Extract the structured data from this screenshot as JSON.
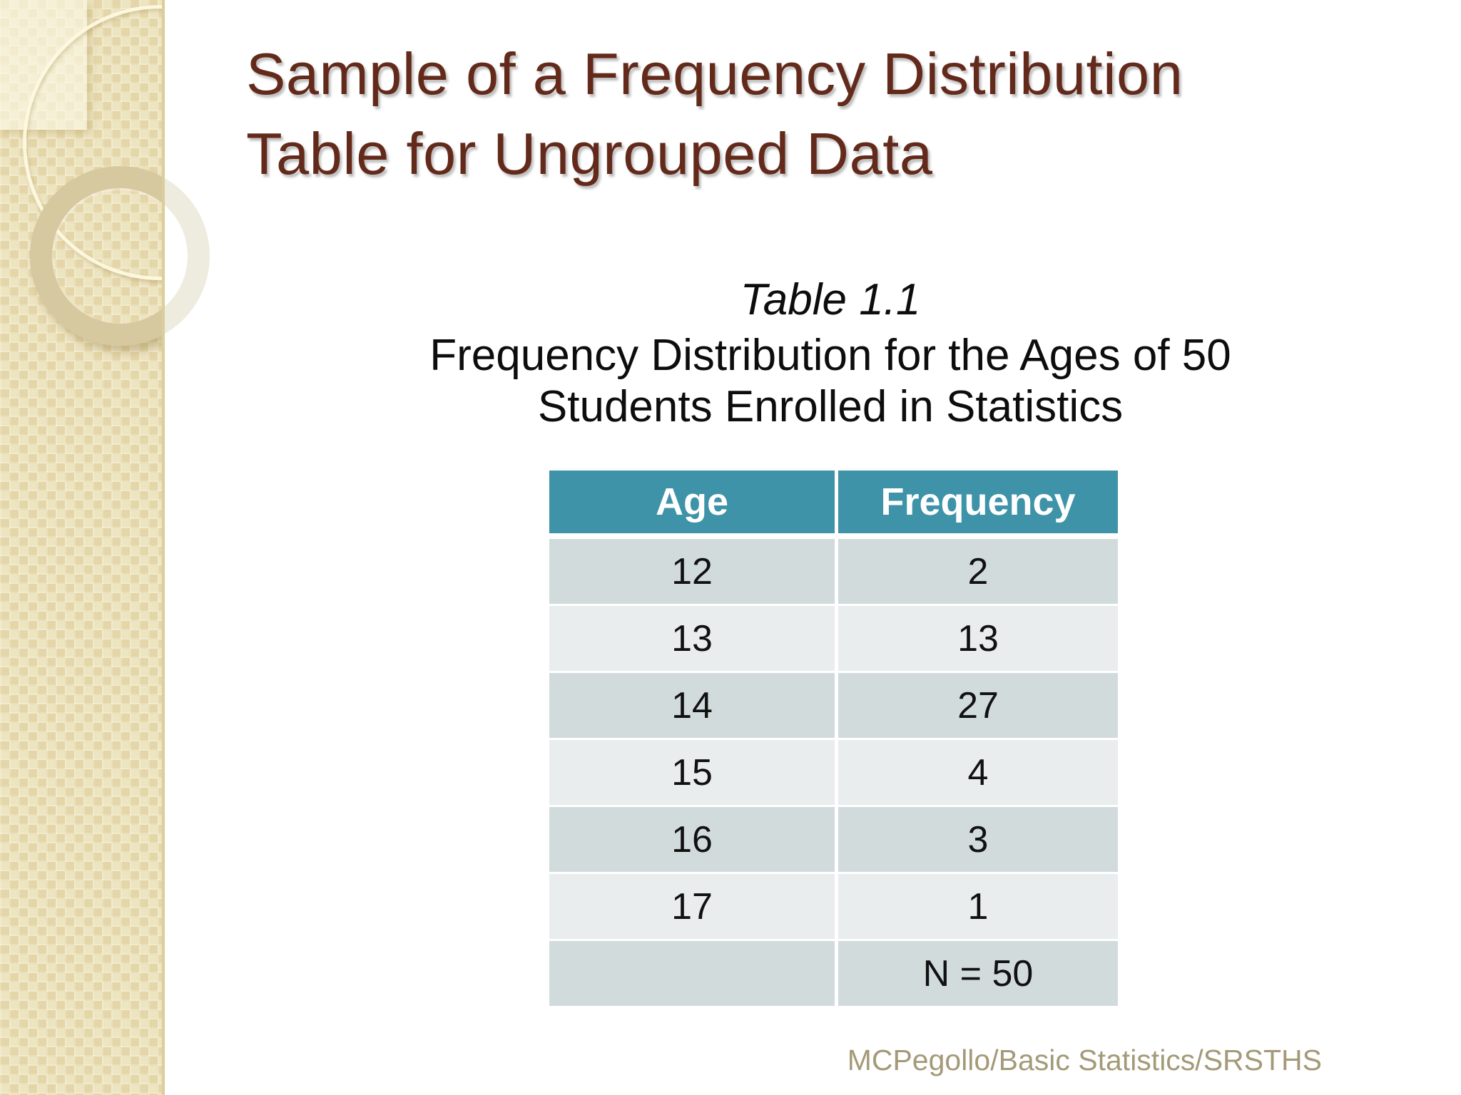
{
  "slide": {
    "title_line1": "Sample of a Frequency Distribution",
    "title_line2": "Table for Ungrouped Data",
    "caption": "Table 1.1",
    "subtitle_line1": "Frequency Distribution for the Ages of 50",
    "subtitle_line2": "Students Enrolled in Statistics",
    "footer": "MCPegollo/Basic Statistics/SRSTHS"
  },
  "table": {
    "columns": [
      "Age",
      "Frequency"
    ],
    "rows": [
      [
        "12",
        "2"
      ],
      [
        "13",
        "13"
      ],
      [
        "14",
        "27"
      ],
      [
        "15",
        "4"
      ],
      [
        "16",
        "3"
      ],
      [
        "17",
        "1"
      ],
      [
        "",
        "N = 50"
      ]
    ]
  },
  "chart_data": {
    "type": "table",
    "title": "Table 1.1",
    "subtitle": "Frequency Distribution for the Ages of 50 Students Enrolled in Statistics",
    "columns": [
      "Age",
      "Frequency"
    ],
    "rows": [
      [
        12,
        2
      ],
      [
        13,
        13
      ],
      [
        14,
        27
      ],
      [
        15,
        4
      ],
      [
        16,
        3
      ],
      [
        17,
        1
      ]
    ],
    "total_label": "N = 50",
    "total": 50
  },
  "colors": {
    "title_color": "#632a1b",
    "header_bg": "#3e93a8",
    "row_dark": "#d2dbdc",
    "row_light": "#e9edee",
    "footer_text": "#a49a78",
    "sidebar_base": "#e9ddb0"
  }
}
